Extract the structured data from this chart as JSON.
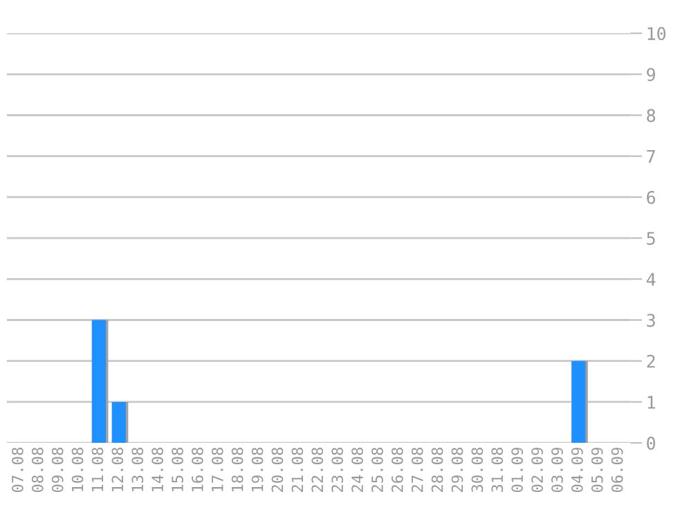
{
  "chart_data": {
    "type": "bar",
    "categories": [
      "07.08",
      "08.08",
      "09.08",
      "10.08",
      "11.08",
      "12.08",
      "13.08",
      "14.08",
      "15.08",
      "16.08",
      "17.08",
      "18.08",
      "19.08",
      "20.08",
      "21.08",
      "22.08",
      "23.08",
      "24.08",
      "25.08",
      "26.08",
      "27.08",
      "28.08",
      "29.08",
      "30.08",
      "31.08",
      "01.09",
      "02.09",
      "03.09",
      "04.09",
      "05.09",
      "06.09"
    ],
    "values": [
      0,
      0,
      0,
      0,
      3,
      1,
      0,
      0,
      0,
      0,
      0,
      0,
      0,
      0,
      0,
      0,
      0,
      0,
      0,
      0,
      0,
      0,
      0,
      0,
      0,
      0,
      0,
      0,
      2,
      0,
      0
    ],
    "color": "#1e90ff",
    "ylim": [
      0,
      10
    ],
    "yticks": [
      0,
      1,
      2,
      3,
      4,
      5,
      6,
      7,
      8,
      9,
      10
    ],
    "grid": "y"
  }
}
